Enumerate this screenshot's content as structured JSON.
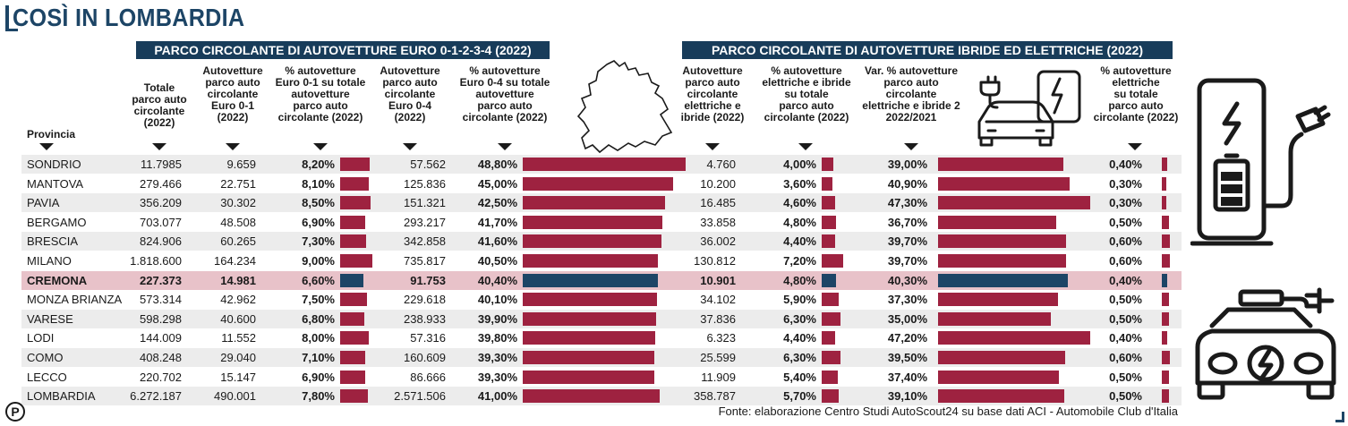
{
  "title": "COSÌ IN LOMBARDIA",
  "banner_left": "PARCO CIRCOLANTE DI AUTOVETTURE EURO 0-1-2-3-4 (2022)",
  "banner_right": "PARCO CIRCOLANTE DI AUTOVETTURE IBRIDE ED ELETTRICHE (2022)",
  "headers": {
    "provincia": "Provincia",
    "totale": "Totale\nparco auto\ncircolante\n(2022)",
    "euro01": "Autovetture\nparco auto\ncircolante\nEuro 0-1\n(2022)",
    "pct01": "% autovetture\nEuro 0-1 su totale\nautovetture\nparco auto\ncircolante (2022)",
    "euro04": "Autovetture\nparco auto\ncircolante\nEuro 0-4\n(2022)",
    "pct04": "% autovetture\nEuro 0-4 su totale\nautovetture\nparco auto\ncircolante (2022)",
    "elett": "Autovetture\nparco auto\ncircolante\nelettriche e\nibride (2022)",
    "pctel": "% autovetture\nelettriche e ibride\nsu totale\nparco auto\ncircolante (2022)",
    "var": "Var. % autovetture\nparco auto\ncircolante\nelettriche e ibride 2\n2022/2021",
    "pctelet": "% autovetture\nelettriche\nsu totale\nparco auto\ncircolante (2022)"
  },
  "rows": [
    {
      "prov": "SONDRIO",
      "tot": "11.7985",
      "e01": "9.659",
      "p01": "8,20%",
      "p01v": 8.2,
      "e04": "57.562",
      "p04": "48,80%",
      "p04v": 48.8,
      "el": "4.760",
      "pel": "4,00%",
      "pelv": 4.0,
      "var": "39,00%",
      "varv": 39.0,
      "pe": "0,40%",
      "pev": 0.4
    },
    {
      "prov": "MANTOVA",
      "tot": "279.466",
      "e01": "22.751",
      "p01": "8,10%",
      "p01v": 8.1,
      "e04": "125.836",
      "p04": "45,00%",
      "p04v": 45.0,
      "el": "10.200",
      "pel": "3,60%",
      "pelv": 3.6,
      "var": "40,90%",
      "varv": 40.9,
      "pe": "0,30%",
      "pev": 0.3
    },
    {
      "prov": "PAVIA",
      "tot": "356.209",
      "e01": "30.302",
      "p01": "8,50%",
      "p01v": 8.5,
      "e04": "151.321",
      "p04": "42,50%",
      "p04v": 42.5,
      "el": "16.485",
      "pel": "4,60%",
      "pelv": 4.6,
      "var": "47,30%",
      "varv": 47.3,
      "pe": "0,30%",
      "pev": 0.3
    },
    {
      "prov": "BERGAMO",
      "tot": "703.077",
      "e01": "48.508",
      "p01": "6,90%",
      "p01v": 6.9,
      "e04": "293.217",
      "p04": "41,70%",
      "p04v": 41.7,
      "el": "33.858",
      "pel": "4,80%",
      "pelv": 4.8,
      "var": "36,70%",
      "varv": 36.7,
      "pe": "0,50%",
      "pev": 0.5
    },
    {
      "prov": "BRESCIA",
      "tot": "824.906",
      "e01": "60.265",
      "p01": "7,30%",
      "p01v": 7.3,
      "e04": "342.858",
      "p04": "41,60%",
      "p04v": 41.6,
      "el": "36.002",
      "pel": "4,40%",
      "pelv": 4.4,
      "var": "39,70%",
      "varv": 39.7,
      "pe": "0,60%",
      "pev": 0.6
    },
    {
      "prov": "MILANO",
      "tot": "1.818.600",
      "e01": "164.234",
      "p01": "9,00%",
      "p01v": 9.0,
      "e04": "735.817",
      "p04": "40,50%",
      "p04v": 40.5,
      "el": "130.812",
      "pel": "7,20%",
      "pelv": 7.2,
      "var": "39,70%",
      "varv": 39.7,
      "pe": "0,60%",
      "pev": 0.6
    },
    {
      "prov": "CREMONA",
      "tot": "227.373",
      "e01": "14.981",
      "p01": "6,60%",
      "p01v": 6.6,
      "e04": "91.753",
      "p04": "40,40%",
      "p04v": 40.4,
      "el": "10.901",
      "pel": "4,80%",
      "pelv": 4.8,
      "var": "40,30%",
      "varv": 40.3,
      "pe": "0,40%",
      "pev": 0.4
    },
    {
      "prov": "MONZA BRIANZA",
      "tot": "573.314",
      "e01": "42.962",
      "p01": "7,50%",
      "p01v": 7.5,
      "e04": "229.618",
      "p04": "40,10%",
      "p04v": 40.1,
      "el": "34.102",
      "pel": "5,90%",
      "pelv": 5.9,
      "var": "37,30%",
      "varv": 37.3,
      "pe": "0,50%",
      "pev": 0.5
    },
    {
      "prov": "VARESE",
      "tot": "598.298",
      "e01": "40.600",
      "p01": "6,80%",
      "p01v": 6.8,
      "e04": "238.933",
      "p04": "39,90%",
      "p04v": 39.9,
      "el": "37.836",
      "pel": "6,30%",
      "pelv": 6.3,
      "var": "35,00%",
      "varv": 35.0,
      "pe": "0,50%",
      "pev": 0.5
    },
    {
      "prov": "LODI",
      "tot": "144.009",
      "e01": "11.552",
      "p01": "8,00%",
      "p01v": 8.0,
      "e04": "57.316",
      "p04": "39,80%",
      "p04v": 39.8,
      "el": "6.323",
      "pel": "4,40%",
      "pelv": 4.4,
      "var": "47,20%",
      "varv": 47.2,
      "pe": "0,40%",
      "pev": 0.4
    },
    {
      "prov": "COMO",
      "tot": "408.248",
      "e01": "29.040",
      "p01": "7,10%",
      "p01v": 7.1,
      "e04": "160.609",
      "p04": "39,30%",
      "p04v": 39.3,
      "el": "25.599",
      "pel": "6,30%",
      "pelv": 6.3,
      "var": "39,50%",
      "varv": 39.5,
      "pe": "0,60%",
      "pev": 0.6
    },
    {
      "prov": "LECCO",
      "tot": "220.702",
      "e01": "15.147",
      "p01": "6,90%",
      "p01v": 6.9,
      "e04": "86.666",
      "p04": "39,30%",
      "p04v": 39.3,
      "el": "11.909",
      "pel": "5,40%",
      "pelv": 5.4,
      "var": "37,40%",
      "varv": 37.4,
      "pe": "0,50%",
      "pev": 0.5
    },
    {
      "prov": "LOMBARDIA",
      "tot": "6.272.187",
      "e01": "490.001",
      "p01": "7,80%",
      "p01v": 7.8,
      "e04": "2.571.506",
      "p04": "41,00%",
      "p04v": 41.0,
      "el": "358.787",
      "pel": "5,70%",
      "pelv": 5.7,
      "var": "39,10%",
      "varv": 39.1,
      "pe": "0,50%",
      "pev": 0.5
    }
  ],
  "highlight_row": "CREMONA",
  "source": "Fonte: elaborazione Centro Studi AutoScout24 su base dati ACI - Automobile Club d'Italia",
  "logo_letter": "P",
  "colors": {
    "navy": "#1d4566",
    "bar": "#9e2240",
    "highlight": "#e8c2c9"
  }
}
